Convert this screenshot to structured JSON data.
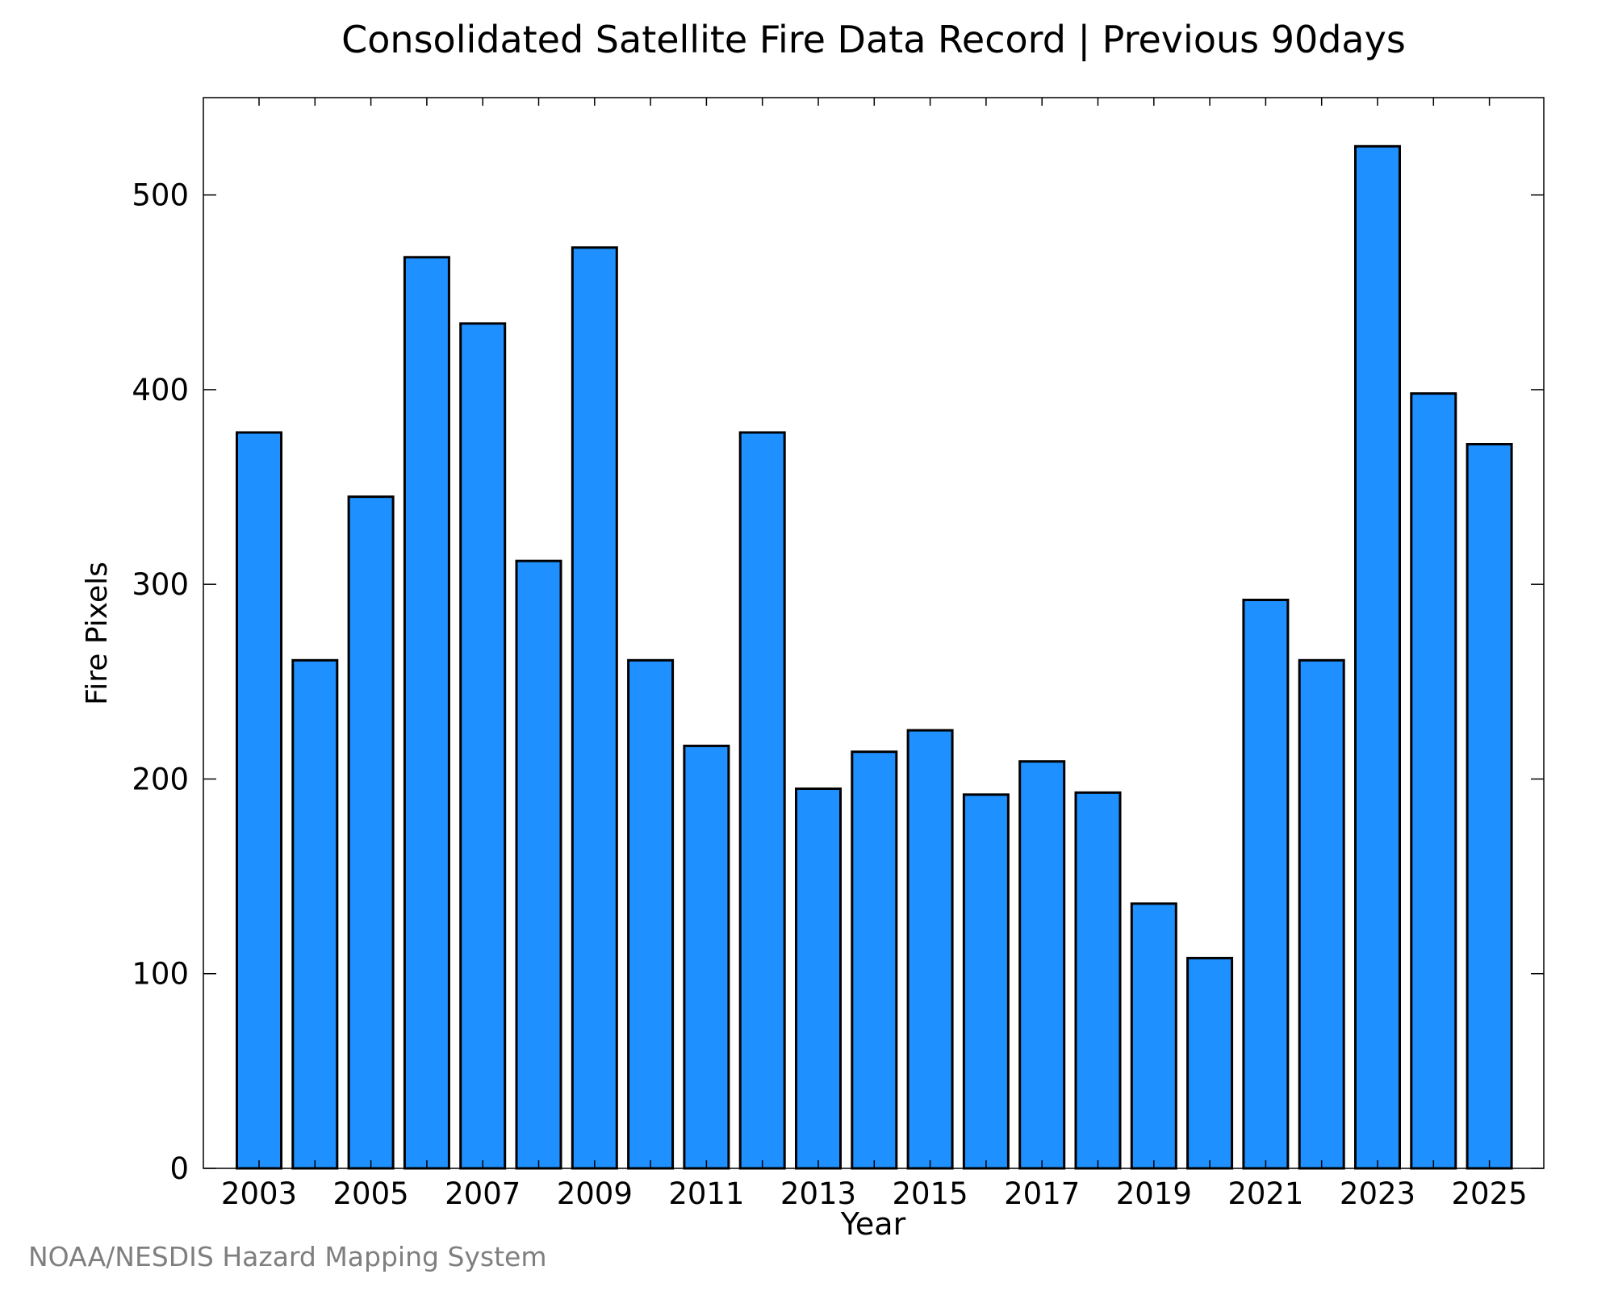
{
  "chart_data": {
    "type": "bar",
    "title": "Consolidated Satellite Fire Data Record | Previous 90days",
    "xlabel": "Year",
    "ylabel": "Fire Pixels",
    "categories": [
      "2003",
      "2004",
      "2005",
      "2006",
      "2007",
      "2008",
      "2009",
      "2010",
      "2011",
      "2012",
      "2013",
      "2014",
      "2015",
      "2016",
      "2017",
      "2018",
      "2019",
      "2020",
      "2021",
      "2022",
      "2023",
      "2024",
      "2025"
    ],
    "values": [
      378,
      261,
      345,
      468,
      434,
      312,
      473,
      261,
      217,
      378,
      195,
      214,
      225,
      192,
      209,
      193,
      136,
      108,
      292,
      261,
      525,
      398,
      372
    ],
    "x_tick_labels": [
      "2003",
      "2005",
      "2007",
      "2009",
      "2011",
      "2013",
      "2015",
      "2017",
      "2019",
      "2021",
      "2023",
      "2025"
    ],
    "y_tick_labels": [
      "0",
      "100",
      "200",
      "300",
      "400",
      "500"
    ],
    "ylim": [
      0,
      550
    ],
    "bar_color": "#1e90ff",
    "bar_edge_color": "#000000",
    "grid": false,
    "legend": "none"
  },
  "footer": {
    "credit": "NOAA/NESDIS Hazard Mapping System"
  }
}
